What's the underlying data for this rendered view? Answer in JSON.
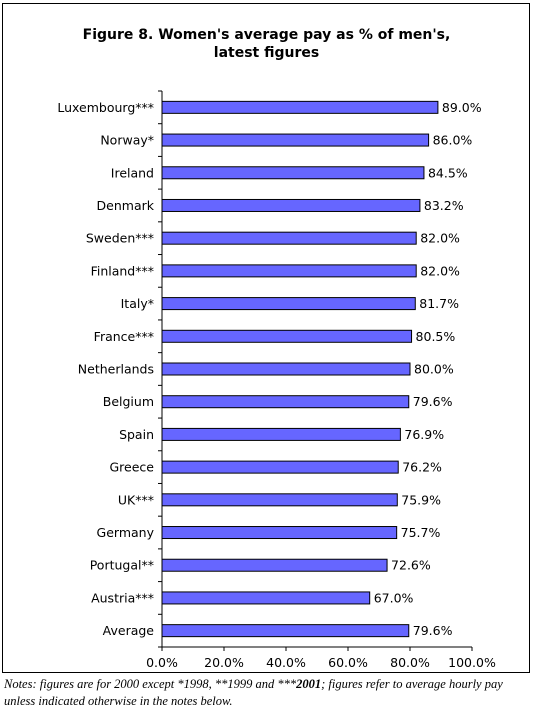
{
  "title_line1": "Figure 8. Women's average pay as % of men's,",
  "title_line2": "latest figures",
  "chart_data": {
    "type": "bar",
    "orientation": "horizontal",
    "categories": [
      "Luxembourg***",
      "Norway*",
      "Ireland",
      "Denmark",
      "Sweden***",
      "Finland***",
      "Italy*",
      "France***",
      "Netherlands",
      "Belgium",
      "Spain",
      "Greece",
      "UK***",
      "Germany",
      "Portugal**",
      "Austria***",
      "Average"
    ],
    "values": [
      89.0,
      86.0,
      84.5,
      83.2,
      82.0,
      82.0,
      81.7,
      80.5,
      80.0,
      79.6,
      76.9,
      76.2,
      75.9,
      75.7,
      72.6,
      67.0,
      79.6
    ],
    "data_labels": [
      "89.0%",
      "86.0%",
      "84.5%",
      "83.2%",
      "82.0%",
      "82.0%",
      "81.7%",
      "80.5%",
      "80.0%",
      "79.6%",
      "76.9%",
      "76.2%",
      "75.9%",
      "75.7%",
      "72.6%",
      "67.0%",
      "79.6%"
    ],
    "x_ticks": [
      "0.0%",
      "20.0%",
      "40.0%",
      "60.0%",
      "80.0%",
      "100.0%"
    ],
    "xlim": [
      0,
      100
    ],
    "grid": false,
    "legend": "none",
    "bar_color": "#6666ff",
    "bar_edge_color": "#000000"
  },
  "notes": {
    "part1": "Notes: figures are for 2000 except *1998, **1999 and ***",
    "bold": "2001",
    "part2": "; figures refer to average hourly pay unless indicated otherwise in the notes below."
  }
}
